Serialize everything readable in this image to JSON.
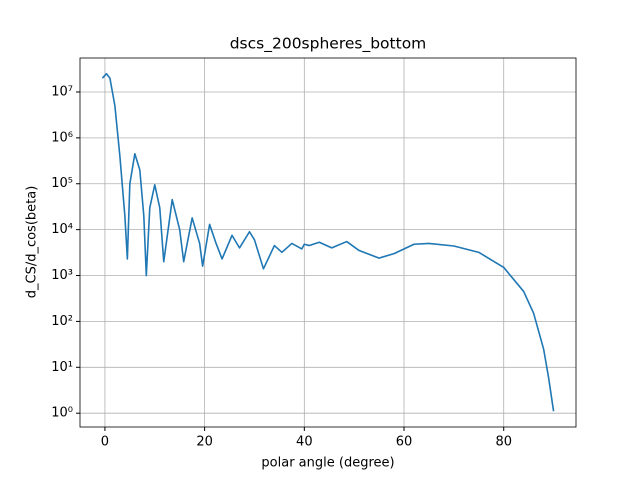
{
  "chart_data": {
    "type": "line",
    "title": "dscs_200spheres_bottom",
    "x_label": "polar angle (degree)",
    "y_label": "d_CS/d_cos(beta)",
    "x": [
      -0.5,
      0.3,
      1,
      2,
      3,
      4,
      4.5,
      5,
      6,
      7,
      7.8,
      8.3,
      9,
      10,
      11,
      11.8,
      13.5,
      15,
      15.8,
      17.5,
      19,
      19.6,
      21,
      22.3,
      23.5,
      25.5,
      27,
      29,
      30,
      31.8,
      34,
      35.5,
      37.5,
      39.5,
      40,
      41,
      43,
      45.5,
      48.5,
      51,
      55,
      58,
      62,
      65,
      70,
      75,
      80,
      84,
      86,
      88,
      89,
      90
    ],
    "values": [
      20000000,
      25000000,
      20000000,
      5000000,
      400000,
      20000,
      2300,
      100000,
      450000,
      200000,
      20000,
      1000,
      30000,
      95000,
      30000,
      2000,
      45000,
      10000,
      2000,
      18000,
      5000,
      1600,
      13000,
      5000,
      2300,
      7500,
      4000,
      9000,
      6000,
      1400,
      4500,
      3200,
      5000,
      3800,
      4800,
      4500,
      5300,
      4000,
      5500,
      3500,
      2400,
      3000,
      4800,
      5000,
      4400,
      3200,
      1500,
      450,
      150,
      25,
      6,
      1.1
    ],
    "color": "#1f77b4",
    "log_y": true,
    "grid": true,
    "xlim": [
      -5,
      94.5
    ],
    "ylim": [
      0.5,
      55000000
    ],
    "xticks": [
      0,
      20,
      40,
      60,
      80
    ],
    "yticks": [
      {
        "value": 1,
        "label": "10⁰"
      },
      {
        "value": 10,
        "label": "10¹"
      },
      {
        "value": 100,
        "label": "10²"
      },
      {
        "value": 1000,
        "label": "10³"
      },
      {
        "value": 10000,
        "label": "10⁴"
      },
      {
        "value": 100000,
        "label": "10⁵"
      },
      {
        "value": 1000000,
        "label": "10⁶"
      },
      {
        "value": 10000000,
        "label": "10⁷"
      }
    ]
  }
}
